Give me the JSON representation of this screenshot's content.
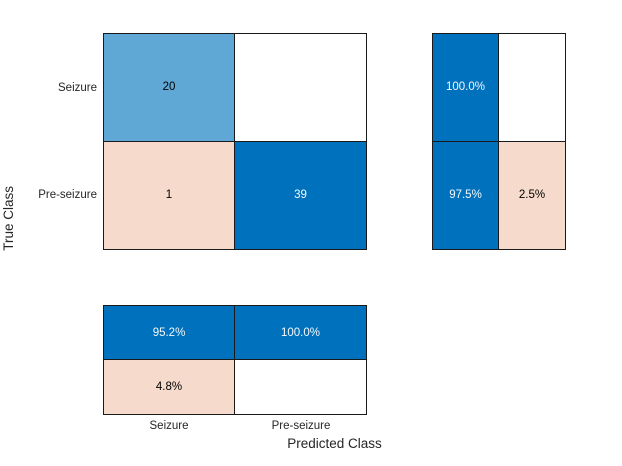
{
  "axes": {
    "ylabel": "True Class",
    "xlabel": "Predicted Class",
    "ytick_labels": [
      "Seizure",
      "Pre-seizure"
    ],
    "xtick_labels": [
      "Seizure",
      "Pre-seizure"
    ]
  },
  "cells": {
    "main": [
      {
        "label": "20",
        "tone": "partial"
      },
      {
        "label": "",
        "tone": "empty"
      },
      {
        "label": "1",
        "tone": "incorrect"
      },
      {
        "label": "39",
        "tone": "correct"
      }
    ],
    "row_summary": [
      {
        "label": "100.0%",
        "tone": "correct"
      },
      {
        "label": "",
        "tone": "empty"
      },
      {
        "label": "97.5%",
        "tone": "correct"
      },
      {
        "label": "2.5%",
        "tone": "incorrect"
      }
    ],
    "column_summary": [
      {
        "label": "95.2%",
        "tone": "correct"
      },
      {
        "label": "100.0%",
        "tone": "correct"
      },
      {
        "label": "4.8%",
        "tone": "incorrect"
      },
      {
        "label": "",
        "tone": "empty"
      }
    ]
  },
  "chart_data": {
    "type": "heatmap",
    "subtype": "confusion_matrix_with_summaries",
    "title": "",
    "xlabel": "Predicted Class",
    "ylabel": "True Class",
    "classes": [
      "Seizure",
      "Pre-seizure"
    ],
    "matrix_rows_true_cols_predicted": [
      [
        20,
        0
      ],
      [
        1,
        39
      ]
    ],
    "row_summary_percent": {
      "Seizure": {
        "correct": 100.0,
        "incorrect": null
      },
      "Pre-seizure": {
        "correct": 97.5,
        "incorrect": 2.5
      }
    },
    "column_summary_percent": {
      "Seizure": {
        "correct": 95.2,
        "incorrect": 4.8
      },
      "Pre-seizure": {
        "correct": 100.0,
        "incorrect": null
      }
    },
    "legend_position": "none",
    "grid": false,
    "colors": {
      "correct_blue": "#0072BD",
      "partial_blue": "#5FA7D5",
      "incorrect_pink": "#F6DBCC",
      "empty_cell": "#FFFFFF",
      "cell_border": "#1A1A1A",
      "text_dark": "#262626",
      "text_light": "#F4F8FB",
      "background": "#FFFFFF"
    }
  }
}
